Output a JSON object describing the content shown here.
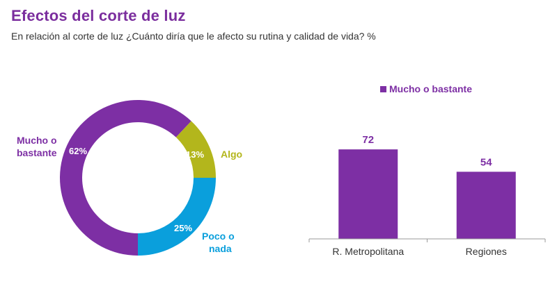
{
  "header": {
    "title": "Efectos del corte de luz",
    "subtitle": "En relación al corte de luz ¿Cuánto diría que le afecto su rutina y calidad de vida? %"
  },
  "colors": {
    "title": "#7b2e9e",
    "mucho": "#7d2fa4",
    "algo": "#b3b61c",
    "poco": "#0a9fdc",
    "axis": "#9a9a9a",
    "text": "#333333"
  },
  "chart_data": [
    {
      "type": "pie",
      "variant": "donut",
      "title": "",
      "start": "bottom",
      "direction": "clockwise",
      "slices": [
        {
          "label": "Mucho o bastante",
          "label_lines": [
            "Mucho o",
            "bastante"
          ],
          "value": 62,
          "value_label": "62%",
          "color_key": "mucho"
        },
        {
          "label": "Algo",
          "label_lines": [
            "Algo"
          ],
          "value": 13,
          "value_label": "13%",
          "color_key": "algo"
        },
        {
          "label": "Poco o nada",
          "label_lines": [
            "Poco o",
            "nada"
          ],
          "value": 25,
          "value_label": "25%",
          "color_key": "poco"
        }
      ]
    },
    {
      "type": "bar",
      "title": "",
      "legend": {
        "entries": [
          "Mucho o bastante"
        ],
        "position": "top-center"
      },
      "categories": [
        "R. Metropolitana",
        "Regiones"
      ],
      "series": [
        {
          "name": "Mucho o bastante",
          "values": [
            72,
            54
          ],
          "color_key": "mucho"
        }
      ],
      "data_labels": [
        "72",
        "54"
      ],
      "xlabel": "",
      "ylabel": "",
      "ylim": [
        0,
        100
      ],
      "grid": false
    }
  ]
}
